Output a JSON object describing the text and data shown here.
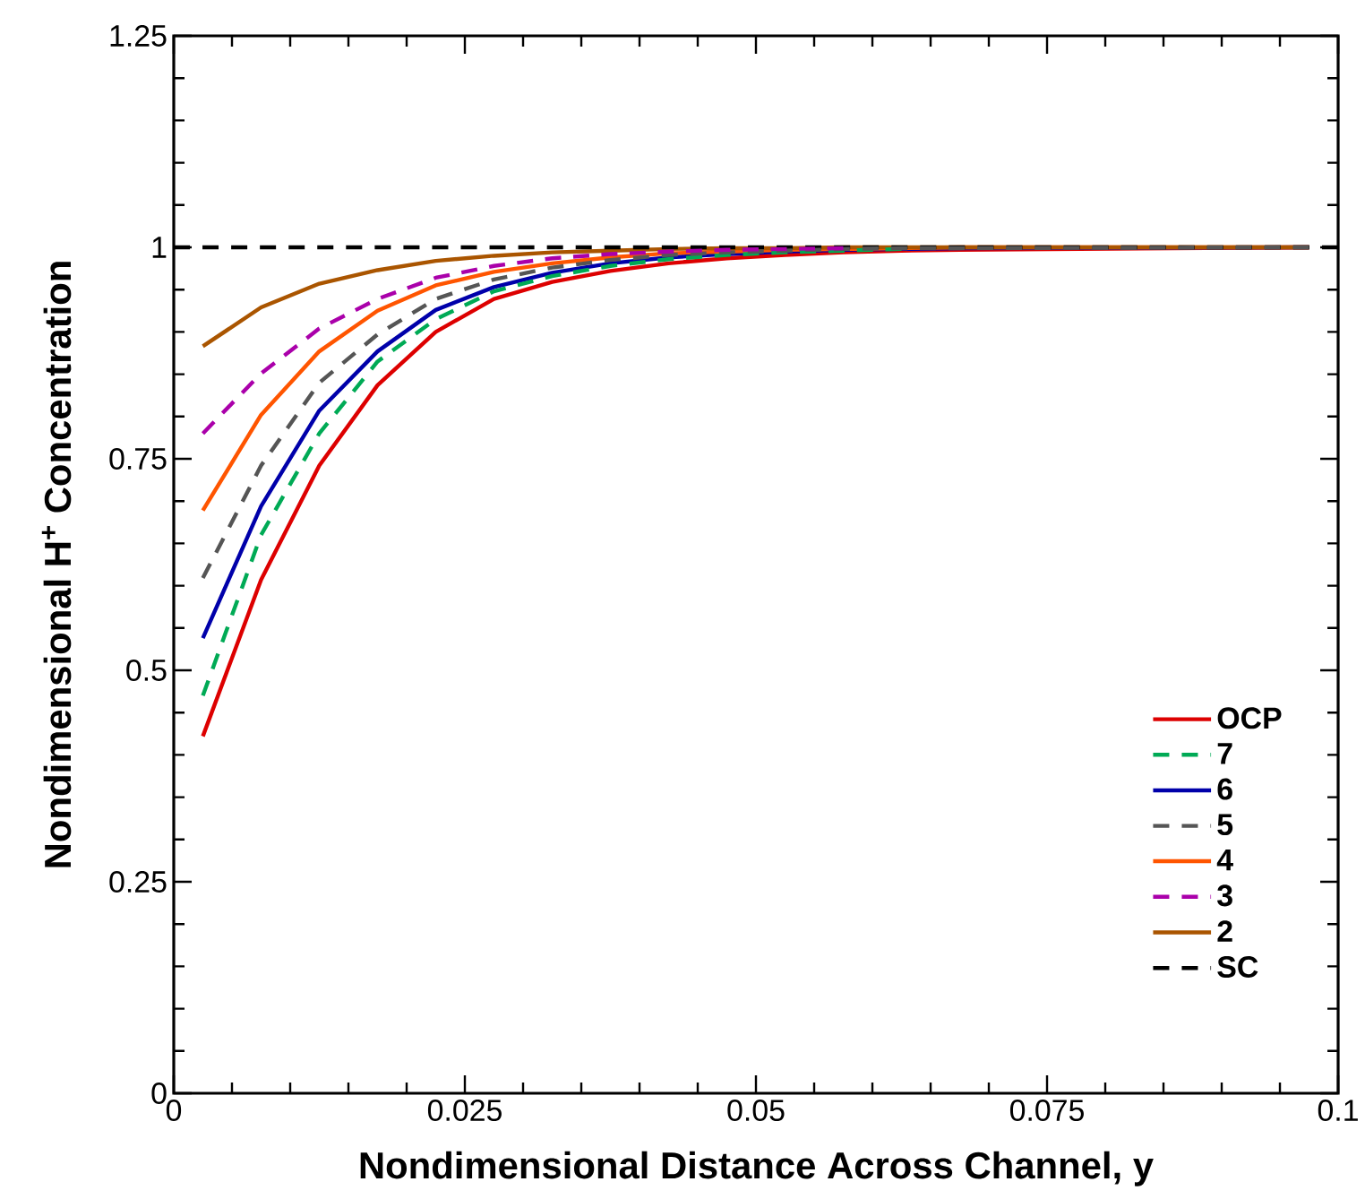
{
  "chart_data": {
    "type": "line",
    "xlabel": "Nondimensional Distance Across Channel, y",
    "ylabel": "Nondimensional H$^{+}$ Concentration",
    "x": [
      0.0025,
      0.0075,
      0.0125,
      0.0175,
      0.0225,
      0.0275,
      0.0325,
      0.0375,
      0.0425,
      0.0475,
      0.0525,
      0.0575,
      0.0625,
      0.0675,
      0.0975
    ],
    "xlim": [
      0,
      0.1
    ],
    "ylim": [
      0,
      1.25
    ],
    "xticks": [
      0,
      0.025,
      0.05,
      0.075,
      0.1
    ],
    "yticks": [
      0,
      0.25,
      0.5,
      0.75,
      1,
      1.25
    ],
    "grid": false,
    "legend": "bottom right",
    "marker": "none",
    "series": [
      {
        "name": "OCP",
        "color": "#dd0000",
        "line_style": "solid",
        "values": [
          0.422,
          0.607,
          0.742,
          0.837,
          0.9,
          0.939,
          0.959,
          0.972,
          0.981,
          0.987,
          0.991,
          0.994,
          0.996,
          0.997,
          1.0
        ]
      },
      {
        "name": "7",
        "color": "#00aa55",
        "line_style": "dashed",
        "values": [
          0.47,
          0.66,
          0.78,
          0.865,
          0.915,
          0.948,
          0.966,
          0.978,
          0.986,
          0.991,
          0.994,
          0.996,
          0.998,
          null,
          null
        ]
      },
      {
        "name": "6",
        "color": "#0000aa",
        "line_style": "solid",
        "values": [
          0.538,
          0.694,
          0.807,
          0.877,
          0.926,
          0.953,
          0.97,
          0.981,
          0.988,
          0.992,
          0.995,
          0.997,
          0.998,
          0.999,
          1.0
        ]
      },
      {
        "name": "5",
        "color": "#555555",
        "line_style": "dashed",
        "values": [
          0.609,
          0.742,
          0.84,
          0.897,
          0.939,
          0.962,
          0.976,
          0.985,
          0.991,
          0.994,
          0.996,
          0.998,
          0.999,
          0.999,
          1.0
        ]
      },
      {
        "name": "4",
        "color": "#ff5500",
        "line_style": "solid",
        "values": [
          0.689,
          0.802,
          0.877,
          0.925,
          0.955,
          0.971,
          0.981,
          0.988,
          0.993,
          0.995,
          0.997,
          0.998,
          0.999,
          1.0,
          1.0
        ]
      },
      {
        "name": "3",
        "color": "#aa00aa",
        "line_style": "dashed",
        "values": [
          0.78,
          0.851,
          0.904,
          0.939,
          0.964,
          0.978,
          0.987,
          0.992,
          0.995,
          0.997,
          0.998,
          0.999,
          null,
          null,
          null
        ]
      },
      {
        "name": "2",
        "color": "#aa5500",
        "line_style": "solid",
        "values": [
          0.883,
          0.929,
          0.957,
          0.973,
          0.984,
          0.99,
          0.994,
          0.996,
          0.998,
          0.999,
          0.999,
          1.0,
          1.0,
          1.0,
          1.0
        ]
      },
      {
        "name": "SC",
        "color": "#000000",
        "line_style": "dashed",
        "x": [
          0,
          0.1
        ],
        "values": [
          1,
          1
        ]
      }
    ]
  }
}
